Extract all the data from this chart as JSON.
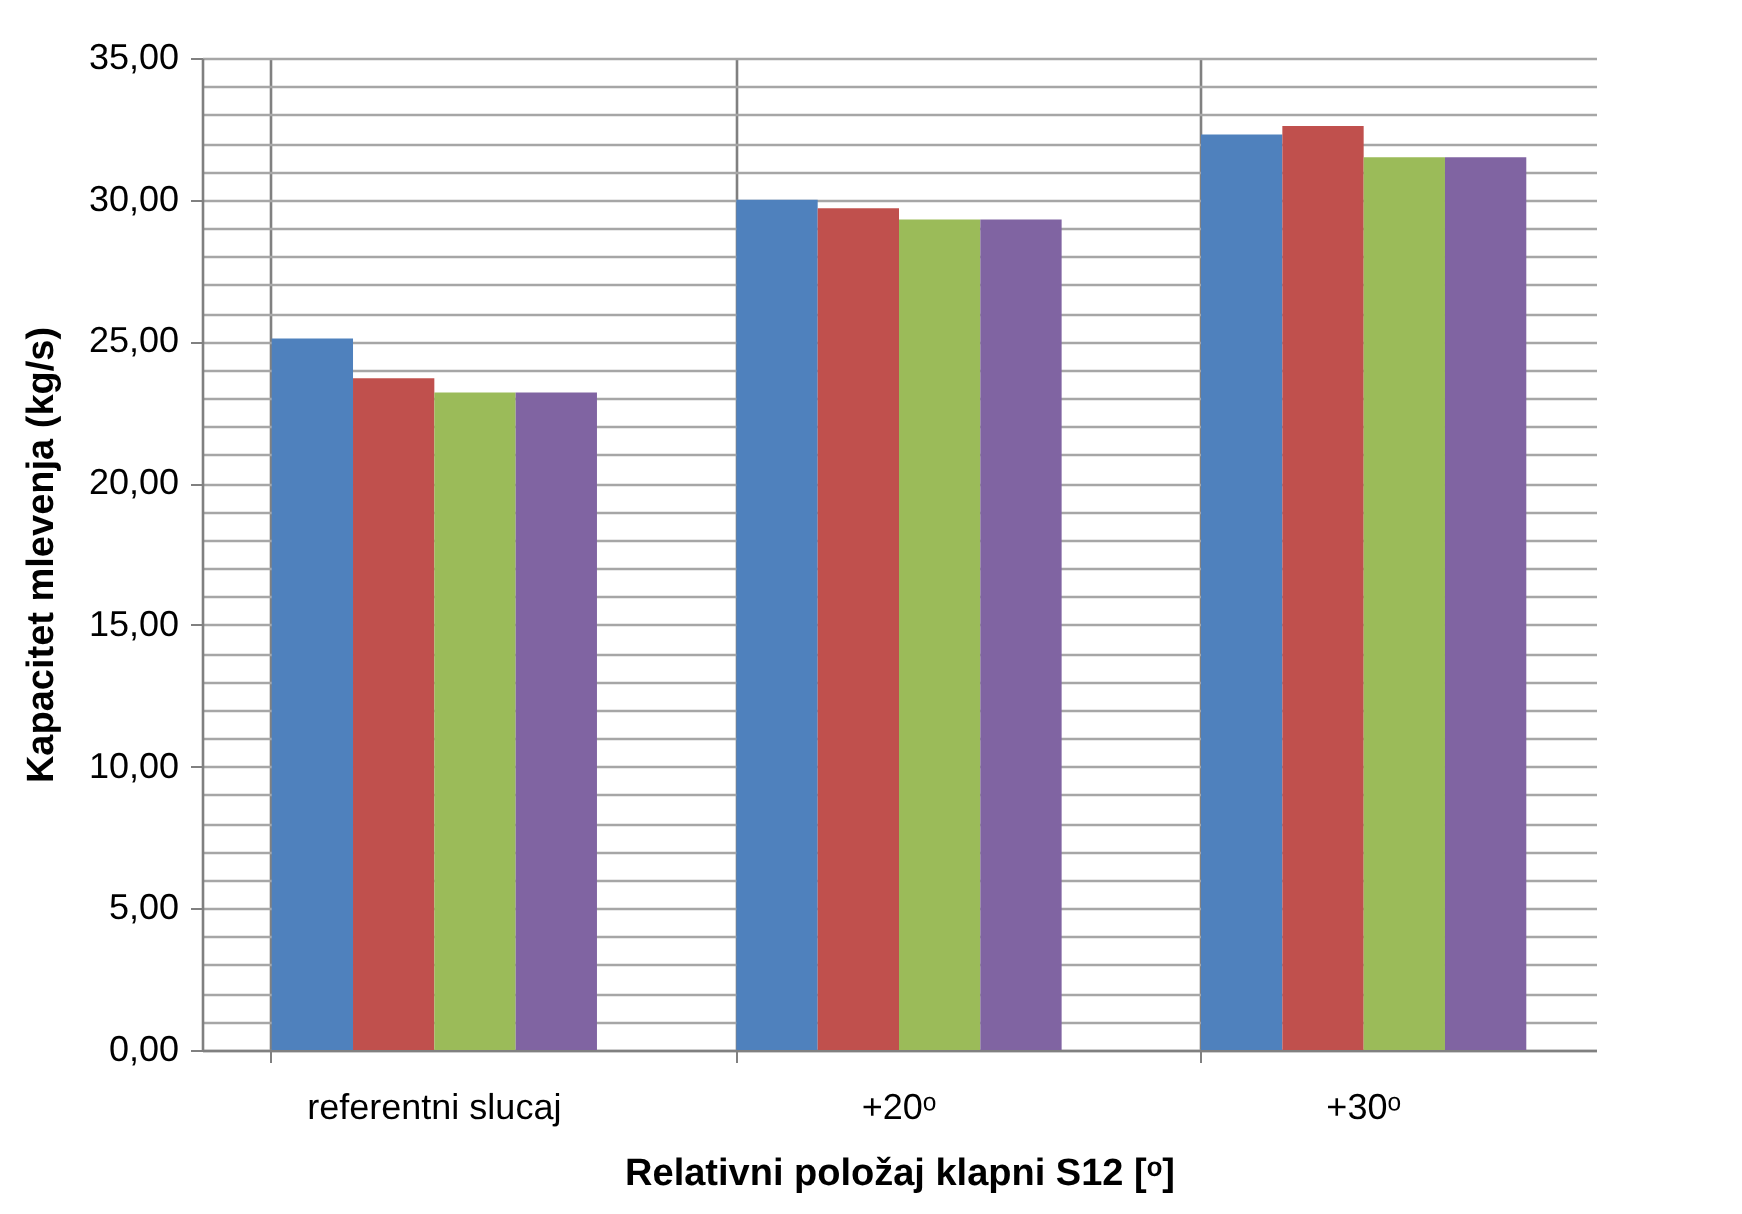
{
  "chart_data": {
    "type": "bar",
    "categories": [
      "referentni slucaj",
      "+20ᵒ",
      "+30ᵒ"
    ],
    "xlabel": "Relativni položaj klapni S12 [ᵒ]",
    "ylabel": "Kapacitet mlevenja (kg/s)",
    "series": [
      {
        "color": "#4f81bd",
        "values": [
          25.1,
          30.0,
          32.3
        ]
      },
      {
        "color": "#c0504d",
        "values": [
          23.7,
          29.7,
          32.6
        ]
      },
      {
        "color": "#9bbb59",
        "values": [
          23.2,
          29.3,
          31.5
        ]
      },
      {
        "color": "#8064a2",
        "values": [
          23.2,
          29.3,
          31.5
        ]
      }
    ],
    "ylim": [
      0,
      35
    ],
    "yticks": [
      {
        "value": 0,
        "label": "0,00"
      },
      {
        "value": 1,
        "label": null
      },
      {
        "value": 2,
        "label": null
      },
      {
        "value": 3,
        "label": null
      },
      {
        "value": 4,
        "label": null
      },
      {
        "value": 5,
        "label": "5,00"
      },
      {
        "value": 6,
        "label": null
      },
      {
        "value": 7,
        "label": null
      },
      {
        "value": 8,
        "label": null
      },
      {
        "value": 9,
        "label": null
      },
      {
        "value": 10,
        "label": "10,00"
      },
      {
        "value": 11,
        "label": null
      },
      {
        "value": 12,
        "label": null
      },
      {
        "value": 13,
        "label": null
      },
      {
        "value": 14,
        "label": null
      },
      {
        "value": 15,
        "label": "15,00"
      },
      {
        "value": 16,
        "label": null
      },
      {
        "value": 17,
        "label": null
      },
      {
        "value": 18,
        "label": null
      },
      {
        "value": 19,
        "label": null
      },
      {
        "value": 20,
        "label": "20,00"
      },
      {
        "value": 21,
        "label": null
      },
      {
        "value": 22,
        "label": null
      },
      {
        "value": 23,
        "label": null
      },
      {
        "value": 24,
        "label": null
      },
      {
        "value": 25,
        "label": "25,00"
      },
      {
        "value": 26,
        "label": null
      },
      {
        "value": 27,
        "label": null
      },
      {
        "value": 28,
        "label": null
      },
      {
        "value": 29,
        "label": null
      },
      {
        "value": 30,
        "label": "30,00"
      },
      {
        "value": 31,
        "label": null
      },
      {
        "value": 32,
        "label": null
      },
      {
        "value": 33,
        "label": null
      },
      {
        "value": 34,
        "label": null
      },
      {
        "value": 35,
        "label": "35,00"
      }
    ],
    "grid": true,
    "legend": false
  }
}
